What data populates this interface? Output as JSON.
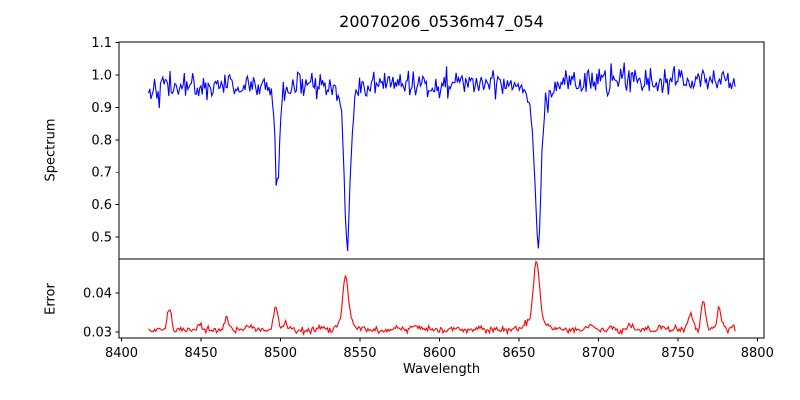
{
  "chart_data": {
    "type": "line",
    "title": "20070206_0536m47_054",
    "xlabel": "Wavelength",
    "x": {
      "lim": [
        8398.4,
        8804.2
      ],
      "data_range": [
        8417,
        8786
      ],
      "sample_step": 0.75,
      "ticks": [
        {
          "value": 8400,
          "label": "8400"
        },
        {
          "value": 8450,
          "label": "8450"
        },
        {
          "value": 8500,
          "label": "8500"
        },
        {
          "value": 8550,
          "label": "8550"
        },
        {
          "value": 8600,
          "label": "8600"
        },
        {
          "value": 8650,
          "label": "8650"
        },
        {
          "value": 8700,
          "label": "8700"
        },
        {
          "value": 8750,
          "label": "8750"
        },
        {
          "value": 8800,
          "label": "8800"
        }
      ]
    },
    "panels": [
      {
        "id": "spectrum",
        "ylabel": "Spectrum",
        "color": "#0000ff",
        "ylim": [
          0.432,
          1.102
        ],
        "ticks": [
          {
            "value": 0.5,
            "label": "0.5"
          },
          {
            "value": 0.6,
            "label": "0.6"
          },
          {
            "value": 0.7,
            "label": "0.7"
          },
          {
            "value": 0.8,
            "label": "0.8"
          },
          {
            "value": 0.9,
            "label": "0.9"
          },
          {
            "value": 1.0,
            "label": "1.0"
          },
          {
            "value": 1.1,
            "label": "1.1"
          }
        ],
        "model": {
          "continuum": {
            "start": 0.963,
            "end": 0.985
          },
          "noise_sigma": 0.02,
          "absorption_lines": [
            {
              "center": 8498,
              "core_depth": 0.28,
              "core_sigma": 1.2,
              "wing_depth": 0.055,
              "wing_sigma": 3.0,
              "observed_minimum": 0.64
            },
            {
              "center": 8542,
              "core_depth": 0.41,
              "core_sigma": 1.6,
              "wing_depth": 0.1,
              "wing_sigma": 4.5,
              "observed_minimum": 0.46
            },
            {
              "center": 8662,
              "core_depth": 0.4,
              "core_sigma": 1.7,
              "wing_depth": 0.1,
              "wing_sigma": 5.0,
              "observed_minimum": 0.47
            }
          ]
        }
      },
      {
        "id": "error",
        "ylabel": "Error",
        "color": "#ff0000",
        "ylim": [
          0.0285,
          0.0487
        ],
        "ticks": [
          {
            "value": 0.03,
            "label": "0.03"
          },
          {
            "value": 0.04,
            "label": "0.04"
          }
        ],
        "model": {
          "baseline": 0.0306,
          "noise_sigma": 0.00042,
          "peaks": [
            {
              "center": 8430,
              "height": 0.006,
              "sigma": 1.2
            },
            {
              "center": 8449,
              "height": 0.0016,
              "sigma": 1.2
            },
            {
              "center": 8466,
              "height": 0.0032,
              "sigma": 1.3
            },
            {
              "center": 8480,
              "height": 0.001,
              "sigma": 1.5
            },
            {
              "center": 8497,
              "height": 0.0058,
              "sigma": 1.4
            },
            {
              "center": 8503,
              "height": 0.0018,
              "sigma": 1.2
            },
            {
              "center": 8524,
              "height": 0.0009,
              "sigma": 1.5
            },
            {
              "center": 8541,
              "height": 0.0115,
              "sigma": 1.7
            },
            {
              "center": 8541,
              "height": 0.0018,
              "sigma": 5.0
            },
            {
              "center": 8585,
              "height": 0.0008,
              "sigma": 2.0
            },
            {
              "center": 8610,
              "height": 0.0007,
              "sigma": 2.0
            },
            {
              "center": 8661,
              "height": 0.0155,
              "sigma": 1.9
            },
            {
              "center": 8661,
              "height": 0.0022,
              "sigma": 6.0
            },
            {
              "center": 8695,
              "height": 0.0012,
              "sigma": 2.0
            },
            {
              "center": 8720,
              "height": 0.0012,
              "sigma": 2.0
            },
            {
              "center": 8740,
              "height": 0.001,
              "sigma": 1.8
            },
            {
              "center": 8758,
              "height": 0.0044,
              "sigma": 1.4
            },
            {
              "center": 8766,
              "height": 0.0076,
              "sigma": 1.3
            },
            {
              "center": 8776,
              "height": 0.0058,
              "sigma": 1.3
            }
          ]
        }
      }
    ]
  }
}
